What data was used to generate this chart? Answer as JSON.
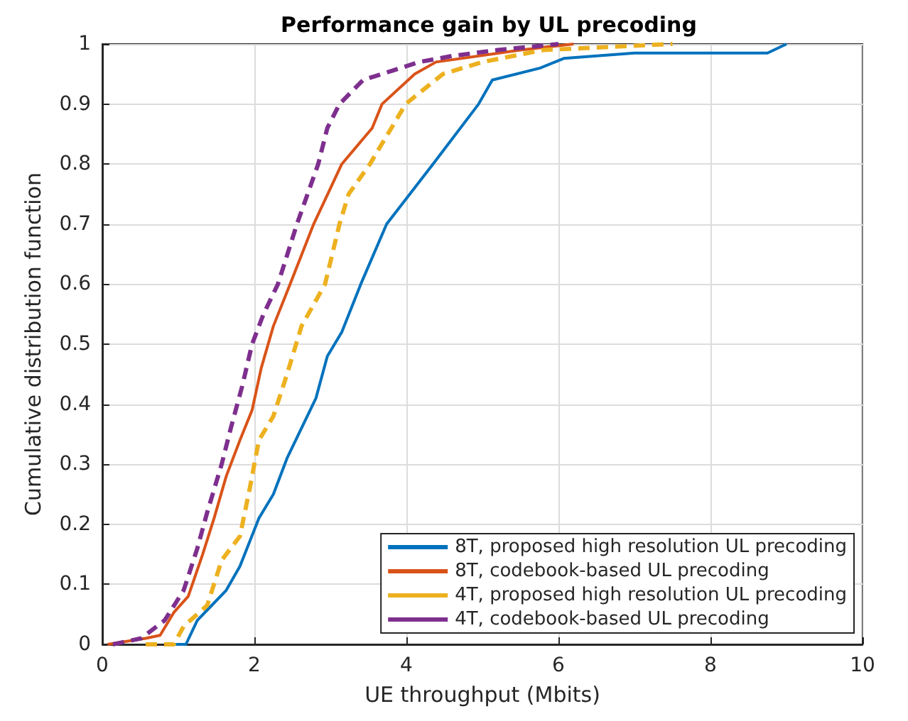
{
  "chart_data": {
    "type": "line",
    "title": "Performance gain by UL precoding",
    "xlabel": "UE throughput (Mbits)",
    "ylabel": "Cumulative distribution function",
    "xlim": [
      0,
      10
    ],
    "xticks": [
      0,
      2,
      4,
      6,
      8,
      10
    ],
    "ylim": [
      0,
      1
    ],
    "yticks": [
      0,
      0.1,
      0.2,
      0.3,
      0.4,
      0.5,
      0.6,
      0.7,
      0.8,
      0.9,
      1
    ],
    "grid": true,
    "legend": "bottom right",
    "marker": "none",
    "series": [
      {
        "name": "8T, proposed high resolution UL precoding",
        "color": "#0072bd",
        "line_style": "solid",
        "x": [
          0.85,
          1.1,
          1.25,
          1.44,
          1.63,
          1.81,
          2.06,
          2.25,
          2.43,
          2.62,
          2.81,
          2.96,
          3.15,
          3.4,
          3.74,
          4.35,
          4.95,
          5.13,
          5.76,
          6.07,
          7,
          8.75,
          9.0
        ],
        "values": [
          0,
          0,
          0.04,
          0.065,
          0.09,
          0.13,
          0.21,
          0.25,
          0.31,
          0.36,
          0.41,
          0.48,
          0.52,
          0.6,
          0.7,
          0.8,
          0.9,
          0.94,
          0.96,
          0.976,
          0.985,
          0.985,
          1
        ]
      },
      {
        "name": "8T, codebook-based UL precoding",
        "color": "#d95319",
        "line_style": "solid",
        "x": [
          0.07,
          0.57,
          0.76,
          0.94,
          1.13,
          1.32,
          1.47,
          1.63,
          1.81,
          1.97,
          2.09,
          2.25,
          2.47,
          2.78,
          3.15,
          3.55,
          3.68,
          4.11,
          4.39,
          5.5,
          6.2
        ],
        "values": [
          0,
          0.01,
          0.015,
          0.053,
          0.08,
          0.15,
          0.21,
          0.28,
          0.34,
          0.39,
          0.46,
          0.53,
          0.6,
          0.7,
          0.8,
          0.86,
          0.9,
          0.95,
          0.97,
          0.99,
          1
        ]
      },
      {
        "name": "4T, proposed high resolution UL precoding",
        "color": "#edb120",
        "line_style": "dashed",
        "x": [
          0.57,
          0.94,
          1.07,
          1.38,
          1.57,
          1.81,
          1.94,
          2.06,
          2.25,
          2.43,
          2.62,
          2.93,
          3.12,
          3.24,
          3.52,
          3.99,
          4.48,
          5.0,
          5.8,
          7.5
        ],
        "values": [
          0,
          0,
          0.03,
          0.065,
          0.14,
          0.18,
          0.26,
          0.34,
          0.38,
          0.45,
          0.53,
          0.6,
          0.7,
          0.75,
          0.8,
          0.9,
          0.95,
          0.97,
          0.99,
          1
        ]
      },
      {
        "name": "4T, codebook-based UL precoding",
        "color": "#7e2f8e",
        "line_style": "dashed",
        "x": [
          0.14,
          0.51,
          0.82,
          1.07,
          1.25,
          1.38,
          1.57,
          1.69,
          1.84,
          1.97,
          2.12,
          2.31,
          2.56,
          2.84,
          2.96,
          3.12,
          3.43,
          3.8,
          4.17,
          4.6,
          5.2,
          6.0
        ],
        "values": [
          0,
          0.01,
          0.04,
          0.09,
          0.16,
          0.22,
          0.3,
          0.36,
          0.43,
          0.5,
          0.55,
          0.6,
          0.7,
          0.8,
          0.86,
          0.9,
          0.94,
          0.955,
          0.97,
          0.98,
          0.99,
          1
        ]
      }
    ]
  }
}
